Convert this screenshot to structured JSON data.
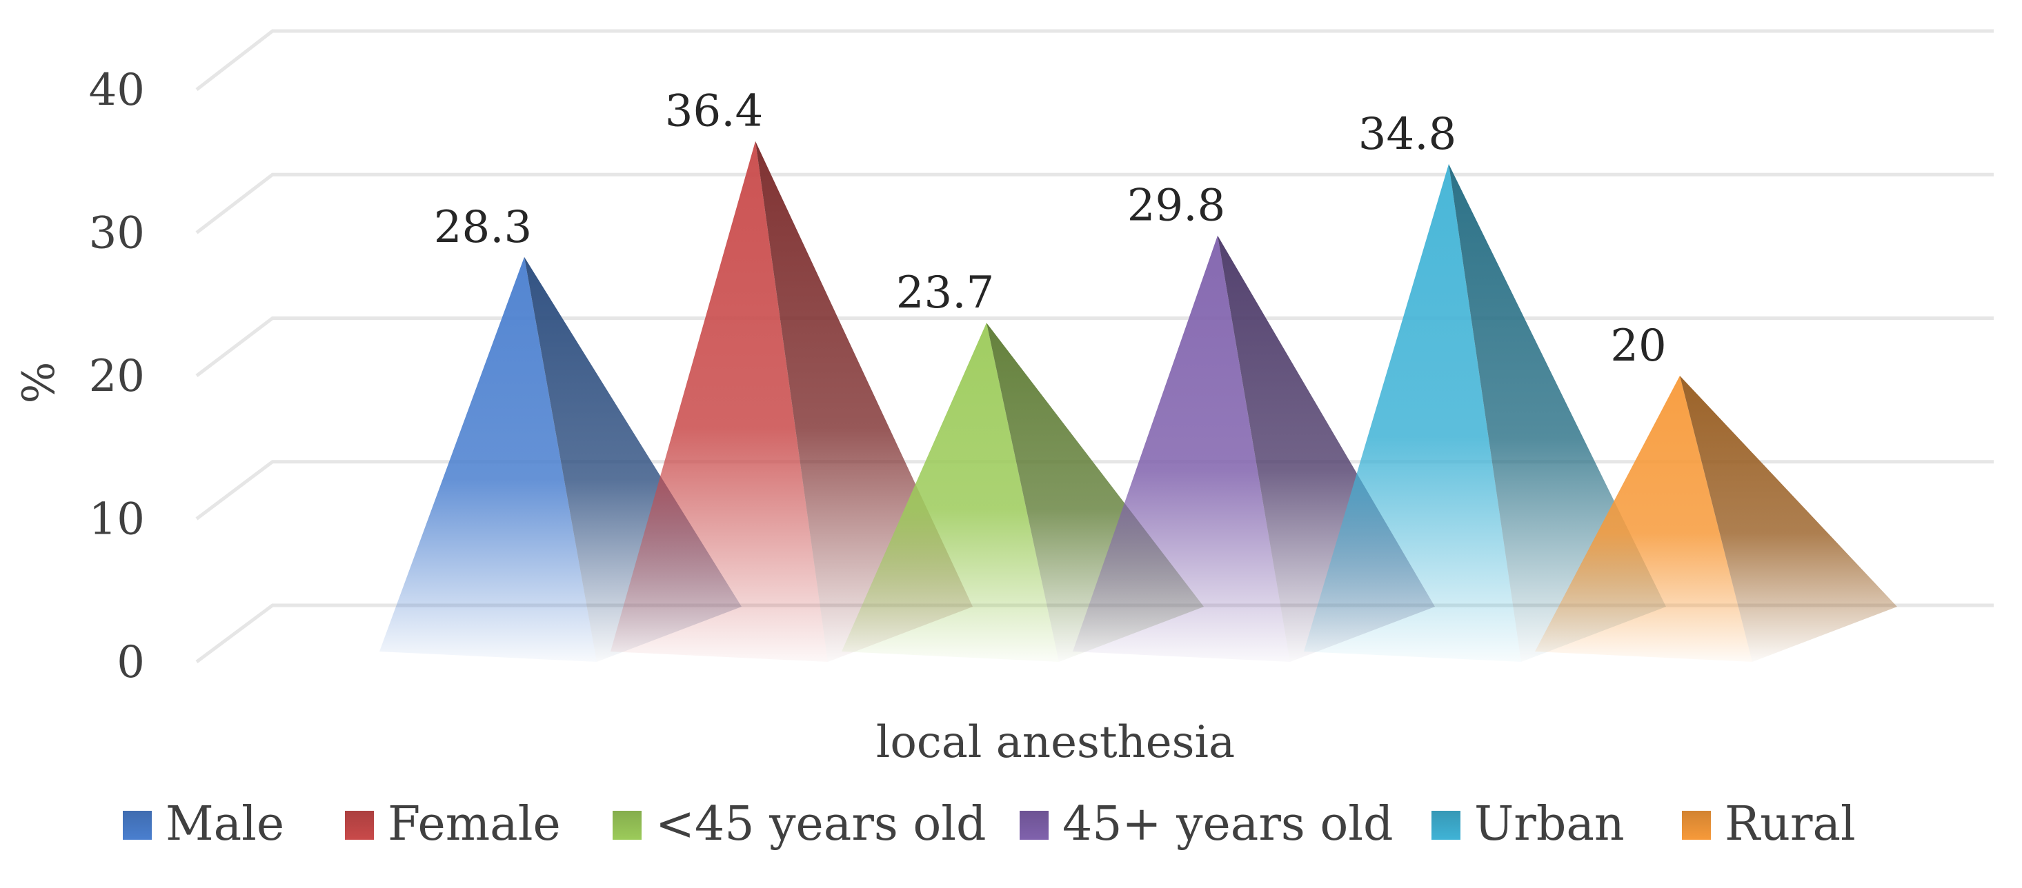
{
  "chart_data": {
    "type": "bar",
    "style": "3d-pyramid",
    "title": "",
    "xlabel": "local anesthesia",
    "ylabel": "%",
    "ylim": [
      0,
      40
    ],
    "yticks": [
      0,
      10,
      20,
      30,
      40
    ],
    "grid": true,
    "legend_position": "bottom",
    "categories": [
      "local anesthesia"
    ],
    "series": [
      {
        "name": "Male",
        "values": [
          28.3
        ],
        "label": "28.3",
        "color": "#4a7fcf"
      },
      {
        "name": "Female",
        "values": [
          36.4
        ],
        "label": "36.4",
        "color": "#c94a4a"
      },
      {
        "name": "<45 years old",
        "values": [
          23.7
        ],
        "label": "23.7",
        "color": "#9ccb5a"
      },
      {
        "name": "45+ years old",
        "values": [
          29.8
        ],
        "label": "29.8",
        "color": "#8062ad"
      },
      {
        "name": "Urban",
        "values": [
          34.8
        ],
        "label": "34.8",
        "color": "#40b3d6"
      },
      {
        "name": "Rural",
        "values": [
          20
        ],
        "label": "20",
        "color": "#f79a3a"
      }
    ]
  }
}
